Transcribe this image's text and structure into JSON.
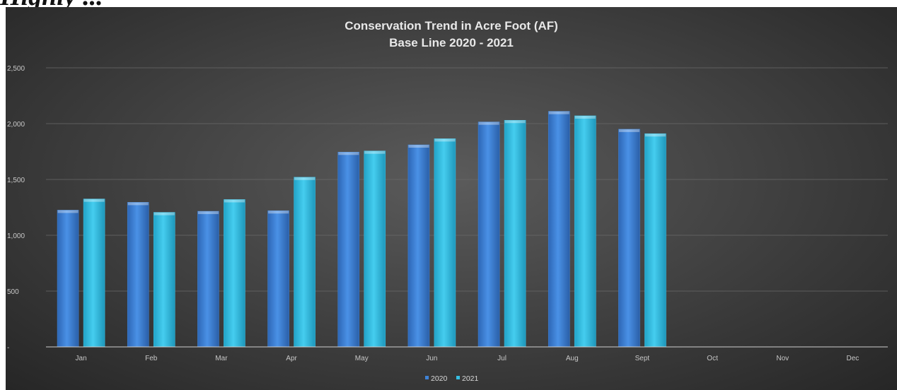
{
  "heading_fragment": "Highly ...",
  "chart_data": {
    "type": "bar",
    "title": "Conservation Trend in Acre Foot (AF)",
    "subtitle": "Base Line 2020 - 2021",
    "categories": [
      "Jan",
      "Feb",
      "Mar",
      "Apr",
      "May",
      "Jun",
      "Jul",
      "Aug",
      "Sept",
      "Oct",
      "Nov",
      "Dec"
    ],
    "series": [
      {
        "name": "2020",
        "color": "#3f83d6",
        "values": [
          1225,
          1295,
          1215,
          1220,
          1745,
          1810,
          2015,
          2110,
          1950,
          null,
          null,
          null
        ]
      },
      {
        "name": "2021",
        "color": "#36bfe3",
        "values": [
          1325,
          1205,
          1320,
          1520,
          1755,
          1865,
          2030,
          2070,
          1910,
          null,
          null,
          null
        ]
      }
    ],
    "ylim": [
      0,
      2500
    ],
    "yticks": [
      0,
      500,
      1000,
      1500,
      2000,
      2500
    ],
    "ytick_labels": [
      "-",
      "500",
      "1,000",
      "1,500",
      "2,000",
      "2,500"
    ],
    "grid": true,
    "legend_position": "bottom",
    "xlabel": "",
    "ylabel": ""
  }
}
